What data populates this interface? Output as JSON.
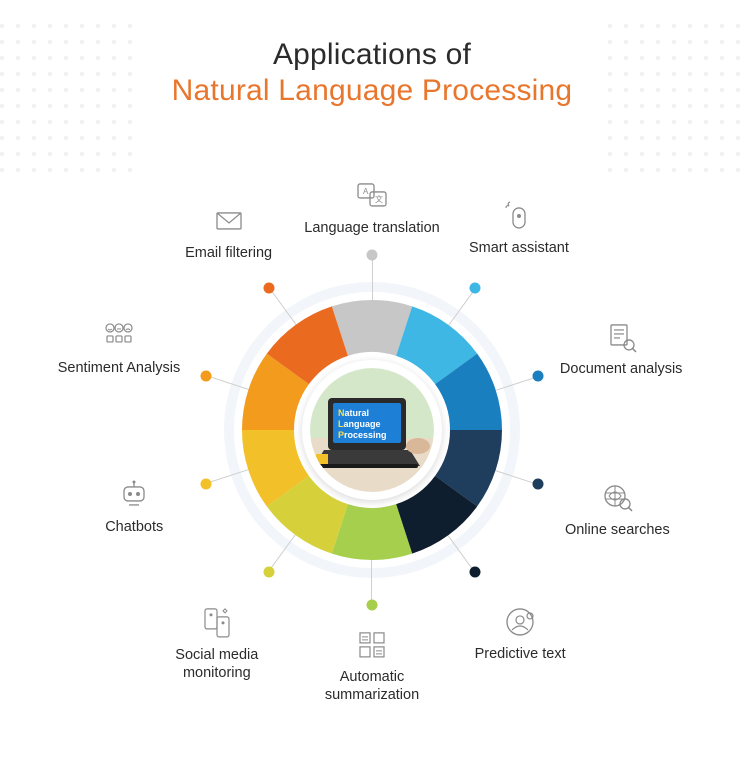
{
  "title": {
    "line1": "Applications of",
    "line2": "Natural Language Processing",
    "line1_color": "#2b2b2b",
    "line2_color": "#e8762c",
    "fontsize": 30
  },
  "diagram": {
    "type": "radial-donut-infographic",
    "outer_halo_color": "#d9e6f2",
    "outer_halo_opacity": 0.35,
    "background_color": "#ffffff",
    "icon_color": "#8a8a8a",
    "spoke_color": "#cfcfcf",
    "label_color": "#2b2b2b",
    "label_fontsize": 14.5,
    "ring_outer_radius": 130,
    "ring_inner_radius": 78,
    "spoke_inner_radius": 130,
    "spoke_outer_radius": 175,
    "item_radius": 250,
    "segments": [
      {
        "angle_deg": -90,
        "color": "#c7c7c7",
        "label": "Language translation",
        "icon": "translate-icon",
        "item_radius": 222,
        "dot_color": "#c7c7c7"
      },
      {
        "angle_deg": -54,
        "color": "#3eb7e4",
        "label": "Smart assistant",
        "icon": "assistant-icon",
        "item_radius": 250,
        "dot_color": "#3eb7e4"
      },
      {
        "angle_deg": -18,
        "color": "#1a7fbf",
        "label": "Document analysis",
        "icon": "document-icon",
        "item_radius": 262,
        "dot_color": "#1a7fbf"
      },
      {
        "angle_deg": 18,
        "color": "#1f3d5c",
        "label": "Online searches",
        "icon": "search-icon",
        "item_radius": 258,
        "dot_color": "#1f3d5c"
      },
      {
        "angle_deg": 54,
        "color": "#0f1e2e",
        "label": "Predictive text",
        "icon": "predictive-icon",
        "item_radius": 252,
        "dot_color": "#0f1e2e"
      },
      {
        "angle_deg": 90,
        "color": "#a5cf4c",
        "label": "Automatic summarization",
        "icon": "summarize-icon",
        "item_radius": 236,
        "dot_color": "#a5cf4c"
      },
      {
        "angle_deg": 126,
        "color": "#d6d13a",
        "label": "Social media monitoring",
        "icon": "social-icon",
        "item_radius": 264,
        "dot_color": "#d6d13a"
      },
      {
        "angle_deg": 162,
        "color": "#f2c028",
        "label": "Chatbots",
        "icon": "chatbot-icon",
        "item_radius": 250,
        "dot_color": "#f2c028"
      },
      {
        "angle_deg": 198,
        "color": "#f29b1d",
        "label": "Sentiment Analysis",
        "icon": "sentiment-icon",
        "item_radius": 266,
        "dot_color": "#f29b1d"
      },
      {
        "angle_deg": 234,
        "color": "#ea6a1f",
        "label": "Email filtering",
        "icon": "email-icon",
        "item_radius": 244,
        "dot_color": "#ea6a1f"
      }
    ],
    "center": {
      "bg_top": "#d4e8c9",
      "bg_bottom": "#e8dcc8",
      "laptop_body": "#2a2a2a",
      "screen_bg": "#1d7fd6",
      "text_accent": "#f7e04a",
      "text_main": "#ffffff",
      "line1_accent": "N",
      "line1_rest": "atural",
      "line2_accent": "L",
      "line2_rest": "anguage",
      "line3_accent": "P",
      "line3_rest": "rocessing"
    }
  },
  "decor": {
    "dot_color": "#555555",
    "dot_opacity": 0.08
  }
}
